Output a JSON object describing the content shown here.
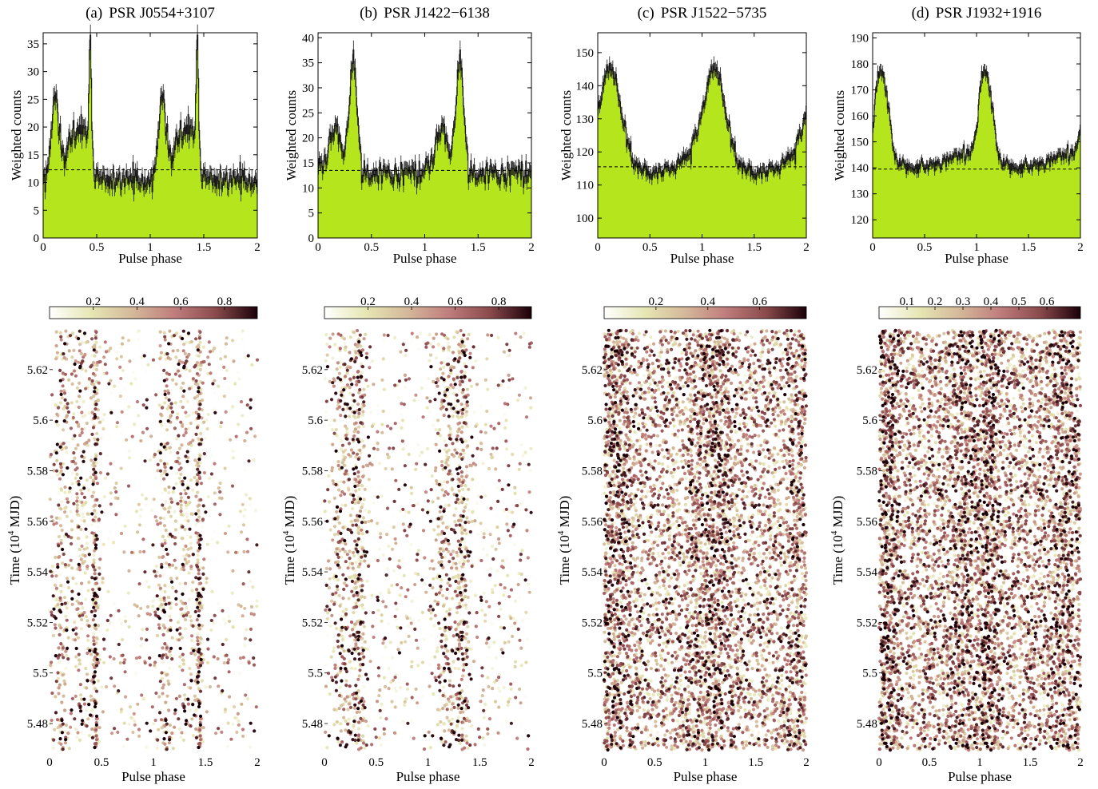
{
  "figure": {
    "profile_xlabel": "Pulse phase",
    "profile_ylabel": "Weighted counts",
    "phaseogram_xlabel": "Pulse phase",
    "phaseogram_ylabel_main": "Time (10",
    "phaseogram_ylabel_exp": "4",
    "phaseogram_ylabel_unit": " MJD)"
  },
  "colors": {
    "fill": "#b5e61d",
    "step": "#1a1a1a",
    "background_line": "#000000",
    "colormap": [
      "#ffffff",
      "#e6e6b4",
      "#d4b89a",
      "#c07d7d",
      "#8a4a4c",
      "#1a0008"
    ]
  },
  "chart_data": [
    {
      "type": "histogram",
      "panel_label": "(a)",
      "title": "PSR J0554+3107",
      "xlim": [
        0,
        2
      ],
      "ylim": [
        0,
        37
      ],
      "yticks": [
        0,
        5,
        10,
        15,
        20,
        25,
        30,
        35
      ],
      "xticks": [
        0,
        0.5,
        1,
        1.5,
        2
      ],
      "background_level": 12.3,
      "profile": {
        "baseline": 10.5,
        "components": [
          {
            "center": 0.11,
            "width": 0.035,
            "height": 14
          },
          {
            "center": 0.28,
            "width": 0.07,
            "height": 8
          },
          {
            "center": 0.44,
            "width": 0.012,
            "height": 21
          },
          {
            "center": 0.39,
            "width": 0.04,
            "height": 7
          }
        ]
      }
    },
    {
      "type": "histogram",
      "panel_label": "(b)",
      "title": "PSR J1422−6138",
      "xlim": [
        0,
        2
      ],
      "ylim": [
        0,
        41
      ],
      "yticks": [
        0,
        5,
        10,
        15,
        20,
        25,
        30,
        35,
        40
      ],
      "xticks": [
        0,
        0.5,
        1,
        1.5,
        2
      ],
      "background_level": 13.5,
      "profile": {
        "baseline": 13.0,
        "components": [
          {
            "center": 0.16,
            "width": 0.06,
            "height": 9
          },
          {
            "center": 0.33,
            "width": 0.035,
            "height": 22
          }
        ]
      }
    },
    {
      "type": "histogram",
      "panel_label": "(c)",
      "title": "PSR J1522−5735",
      "xlim": [
        0,
        2
      ],
      "ylim": [
        94,
        156
      ],
      "yticks": [
        100,
        110,
        120,
        130,
        140,
        150
      ],
      "xticks": [
        0,
        0.5,
        1,
        1.5,
        2
      ],
      "background_level": 115.5,
      "profile": {
        "baseline": 114.5,
        "components": [
          {
            "center": 0.13,
            "width": 0.1,
            "height": 28
          },
          {
            "center": 0.97,
            "width": 0.12,
            "height": 6
          }
        ]
      }
    },
    {
      "type": "histogram",
      "panel_label": "(d)",
      "title": "PSR J1932+1916",
      "xlim": [
        0,
        2
      ],
      "ylim": [
        113,
        192
      ],
      "yticks": [
        120,
        130,
        140,
        150,
        160,
        170,
        180,
        190
      ],
      "xticks": [
        0,
        0.5,
        1,
        1.5,
        2
      ],
      "background_level": 139.5,
      "profile": {
        "baseline": 140.5,
        "components": [
          {
            "center": 0.1,
            "width": 0.06,
            "height": 32
          },
          {
            "center": 0.04,
            "width": 0.04,
            "height": 10
          },
          {
            "center": 0.85,
            "width": 0.12,
            "height": 5
          }
        ]
      }
    },
    {
      "type": "scatter",
      "panel": "(a)",
      "xlim": [
        0,
        2
      ],
      "ylim": [
        54.68,
        56.37
      ],
      "yticks": [
        54.8,
        55,
        55.2,
        55.4,
        55.6,
        55.8,
        56,
        56.2
      ],
      "ytick_labels": [
        "5.48",
        "5.5",
        "5.52",
        "5.54",
        "5.56",
        "5.58",
        "5.6",
        "5.62"
      ],
      "xticks": [
        0,
        0.5,
        1,
        1.5,
        2
      ],
      "colorbar": {
        "min": 0,
        "max": 0.95,
        "ticks": [
          0.2,
          0.4,
          0.6,
          0.8
        ]
      },
      "n_photons": 1100,
      "pulsed_fraction": 0.55,
      "weight_shape": 2.2,
      "peaks": [
        [
          0.11,
          0.04
        ],
        [
          0.3,
          0.06
        ],
        [
          0.44,
          0.015
        ]
      ]
    },
    {
      "type": "scatter",
      "panel": "(b)",
      "xlim": [
        0,
        2
      ],
      "ylim": [
        54.68,
        56.37
      ],
      "yticks": [
        54.8,
        55,
        55.2,
        55.4,
        55.6,
        55.8,
        56,
        56.2
      ],
      "ytick_labels": [
        "5.48",
        "5.5",
        "5.52",
        "5.54",
        "5.56",
        "5.58",
        "5.6",
        "5.62"
      ],
      "xticks": [
        0,
        0.5,
        1,
        1.5,
        2
      ],
      "colorbar": {
        "min": 0,
        "max": 0.95,
        "ticks": [
          0.2,
          0.4,
          0.6,
          0.8
        ]
      },
      "n_photons": 1150,
      "pulsed_fraction": 0.5,
      "weight_shape": 2.2,
      "peaks": [
        [
          0.17,
          0.06
        ],
        [
          0.33,
          0.035
        ]
      ]
    },
    {
      "type": "scatter",
      "panel": "(c)",
      "xlim": [
        0,
        2
      ],
      "ylim": [
        54.68,
        56.37
      ],
      "yticks": [
        54.8,
        55,
        55.2,
        55.4,
        55.6,
        55.8,
        56,
        56.2
      ],
      "ytick_labels": [
        "5.48",
        "5.5",
        "5.52",
        "5.54",
        "5.56",
        "5.58",
        "5.6",
        "5.62"
      ],
      "xticks": [
        0,
        0.5,
        1,
        1.5,
        2
      ],
      "colorbar": {
        "min": 0,
        "max": 0.78,
        "ticks": [
          0.2,
          0.4,
          0.6
        ]
      },
      "n_photons": 3400,
      "pulsed_fraction": 0.25,
      "weight_shape": 1.2,
      "peaks": [
        [
          0.13,
          0.1
        ],
        [
          0.97,
          0.12
        ]
      ]
    },
    {
      "type": "scatter",
      "panel": "(d)",
      "xlim": [
        0,
        2
      ],
      "ylim": [
        54.68,
        56.37
      ],
      "yticks": [
        54.8,
        55,
        55.2,
        55.4,
        55.6,
        55.8,
        56,
        56.2
      ],
      "ytick_labels": [
        "5.48",
        "5.5",
        "5.52",
        "5.54",
        "5.56",
        "5.58",
        "5.6",
        "5.62"
      ],
      "xticks": [
        0,
        0.5,
        1,
        1.5,
        2
      ],
      "colorbar": {
        "min": 0,
        "max": 0.72,
        "ticks": [
          0.1,
          0.2,
          0.3,
          0.4,
          0.5,
          0.6
        ]
      },
      "n_photons": 3600,
      "pulsed_fraction": 0.25,
      "weight_shape": 1.1,
      "peaks": [
        [
          0.1,
          0.06
        ],
        [
          0.85,
          0.12
        ]
      ]
    }
  ]
}
